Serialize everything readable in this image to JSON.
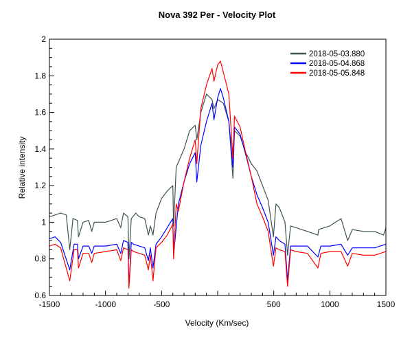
{
  "chart_data": {
    "type": "line",
    "title": "Nova 392 Per - Velocity Plot",
    "xlabel": "Velocity (Km/sec)",
    "ylabel": "Relative intensity",
    "xlim": [
      -1500,
      1500
    ],
    "ylim": [
      0.6,
      2
    ],
    "xticks": [
      -1500,
      -1000,
      -500,
      500,
      1000,
      1500
    ],
    "yticks": [
      0.6,
      0.8,
      1,
      1.2,
      1.4,
      1.6,
      1.8,
      2
    ],
    "grid": false,
    "legend_placement": "top-right",
    "series": [
      {
        "name": "2018-05-03.880",
        "color": "#3f5252",
        "points": [
          [
            -1500,
            1.03
          ],
          [
            -1450,
            1.04
          ],
          [
            -1400,
            1.05
          ],
          [
            -1350,
            1.04
          ],
          [
            -1319,
            0.85
          ],
          [
            -1290,
            1.02
          ],
          [
            -1250,
            1.01
          ],
          [
            -1241,
            0.92
          ],
          [
            -1200,
            1.0
          ],
          [
            -1150,
            1.01
          ],
          [
            -1123,
            0.95
          ],
          [
            -1100,
            1.0
          ],
          [
            -1050,
            1.0
          ],
          [
            -1000,
            1.0
          ],
          [
            -950,
            1.01
          ],
          [
            -900,
            1.02
          ],
          [
            -864,
            0.97
          ],
          [
            -840,
            1.05
          ],
          [
            -800,
            1.03
          ],
          [
            -791,
            0.8
          ],
          [
            -770,
            1.02
          ],
          [
            -730,
            1.05
          ],
          [
            -700,
            1.03
          ],
          [
            -650,
            1.02
          ],
          [
            -618,
            0.93
          ],
          [
            -600,
            0.98
          ],
          [
            -577,
            0.93
          ],
          [
            -550,
            1.05
          ],
          [
            -500,
            1.13
          ],
          [
            -450,
            1.17
          ],
          [
            -400,
            1.2
          ],
          [
            -393,
            0.98
          ],
          [
            -370,
            1.3
          ],
          [
            -300,
            1.4
          ],
          [
            -250,
            1.5
          ],
          [
            -200,
            1.53
          ],
          [
            -186,
            1.45
          ],
          [
            -150,
            1.6
          ],
          [
            -100,
            1.7
          ],
          [
            -50,
            1.67
          ],
          [
            -33,
            1.62
          ],
          [
            0,
            1.67
          ],
          [
            50,
            1.65
          ],
          [
            100,
            1.55
          ],
          [
            136,
            1.24
          ],
          [
            150,
            1.5
          ],
          [
            200,
            1.47
          ],
          [
            250,
            1.38
          ],
          [
            300,
            1.32
          ],
          [
            350,
            1.28
          ],
          [
            400,
            1.2
          ],
          [
            450,
            1.12
          ],
          [
            497,
            0.92
          ],
          [
            520,
            1.1
          ],
          [
            550,
            1.08
          ],
          [
            600,
            1.0
          ],
          [
            623,
            0.82
          ],
          [
            650,
            0.98
          ],
          [
            700,
            0.97
          ],
          [
            800,
            0.95
          ],
          [
            894,
            0.93
          ],
          [
            900,
            0.96
          ],
          [
            1000,
            0.98
          ],
          [
            1100,
            1.02
          ],
          [
            1159,
            0.9
          ],
          [
            1200,
            0.96
          ],
          [
            1300,
            0.95
          ],
          [
            1400,
            0.95
          ],
          [
            1480,
            0.93
          ],
          [
            1500,
            0.97
          ]
        ]
      },
      {
        "name": "2018-05-04.868",
        "color": "#0000ff",
        "points": [
          [
            -1500,
            0.91
          ],
          [
            -1450,
            0.92
          ],
          [
            -1400,
            0.89
          ],
          [
            -1319,
            0.74
          ],
          [
            -1280,
            0.88
          ],
          [
            -1250,
            0.88
          ],
          [
            -1241,
            0.8
          ],
          [
            -1200,
            0.87
          ],
          [
            -1150,
            0.87
          ],
          [
            -1123,
            0.83
          ],
          [
            -1100,
            0.87
          ],
          [
            -1000,
            0.87
          ],
          [
            -900,
            0.88
          ],
          [
            -864,
            0.83
          ],
          [
            -840,
            0.9
          ],
          [
            -800,
            0.89
          ],
          [
            -791,
            0.65
          ],
          [
            -770,
            0.89
          ],
          [
            -750,
            0.88
          ],
          [
            -700,
            0.87
          ],
          [
            -650,
            0.86
          ],
          [
            -618,
            0.79
          ],
          [
            -600,
            0.86
          ],
          [
            -577,
            0.75
          ],
          [
            -550,
            0.88
          ],
          [
            -500,
            0.92
          ],
          [
            -450,
            0.97
          ],
          [
            -400,
            1.02
          ],
          [
            -393,
            0.82
          ],
          [
            -350,
            1.1
          ],
          [
            -300,
            1.22
          ],
          [
            -250,
            1.32
          ],
          [
            -200,
            1.38
          ],
          [
            -186,
            1.22
          ],
          [
            -150,
            1.42
          ],
          [
            -100,
            1.55
          ],
          [
            -50,
            1.65
          ],
          [
            -33,
            1.56
          ],
          [
            0,
            1.68
          ],
          [
            25,
            1.73
          ],
          [
            50,
            1.68
          ],
          [
            100,
            1.55
          ],
          [
            136,
            1.3
          ],
          [
            150,
            1.52
          ],
          [
            200,
            1.48
          ],
          [
            250,
            1.37
          ],
          [
            300,
            1.25
          ],
          [
            350,
            1.15
          ],
          [
            400,
            1.08
          ],
          [
            450,
            1.0
          ],
          [
            497,
            0.82
          ],
          [
            520,
            0.92
          ],
          [
            550,
            0.9
          ],
          [
            600,
            0.88
          ],
          [
            623,
            0.68
          ],
          [
            650,
            0.87
          ],
          [
            700,
            0.87
          ],
          [
            800,
            0.87
          ],
          [
            894,
            0.81
          ],
          [
            920,
            0.87
          ],
          [
            1000,
            0.87
          ],
          [
            1100,
            0.88
          ],
          [
            1159,
            0.82
          ],
          [
            1200,
            0.86
          ],
          [
            1300,
            0.86
          ],
          [
            1400,
            0.86
          ],
          [
            1450,
            0.87
          ],
          [
            1500,
            0.88
          ]
        ]
      },
      {
        "name": "2018-05-05.848",
        "color": "#ff0000",
        "points": [
          [
            -1500,
            0.87
          ],
          [
            -1450,
            0.88
          ],
          [
            -1400,
            0.86
          ],
          [
            -1319,
            0.68
          ],
          [
            -1280,
            0.85
          ],
          [
            -1250,
            0.85
          ],
          [
            -1241,
            0.75
          ],
          [
            -1200,
            0.83
          ],
          [
            -1150,
            0.83
          ],
          [
            -1123,
            0.78
          ],
          [
            -1100,
            0.83
          ],
          [
            -1000,
            0.84
          ],
          [
            -900,
            0.85
          ],
          [
            -864,
            0.79
          ],
          [
            -840,
            0.86
          ],
          [
            -800,
            0.85
          ],
          [
            -791,
            0.64
          ],
          [
            -770,
            0.85
          ],
          [
            -750,
            0.84
          ],
          [
            -700,
            0.83
          ],
          [
            -650,
            0.82
          ],
          [
            -618,
            0.74
          ],
          [
            -600,
            0.82
          ],
          [
            -577,
            0.68
          ],
          [
            -550,
            0.86
          ],
          [
            -500,
            0.89
          ],
          [
            -450,
            0.93
          ],
          [
            -400,
            0.99
          ],
          [
            -393,
            0.8
          ],
          [
            -370,
            1.1
          ],
          [
            -350,
            1.06
          ],
          [
            -300,
            1.22
          ],
          [
            -250,
            1.35
          ],
          [
            -200,
            1.45
          ],
          [
            -186,
            1.32
          ],
          [
            -150,
            1.62
          ],
          [
            -100,
            1.75
          ],
          [
            -50,
            1.84
          ],
          [
            -33,
            1.77
          ],
          [
            0,
            1.86
          ],
          [
            25,
            1.88
          ],
          [
            50,
            1.82
          ],
          [
            100,
            1.7
          ],
          [
            136,
            1.35
          ],
          [
            150,
            1.58
          ],
          [
            200,
            1.52
          ],
          [
            250,
            1.38
          ],
          [
            300,
            1.25
          ],
          [
            350,
            1.1
          ],
          [
            400,
            1.03
          ],
          [
            450,
            0.95
          ],
          [
            497,
            0.76
          ],
          [
            520,
            0.86
          ],
          [
            550,
            0.85
          ],
          [
            600,
            0.84
          ],
          [
            623,
            0.65
          ],
          [
            650,
            0.85
          ],
          [
            700,
            0.84
          ],
          [
            800,
            0.83
          ],
          [
            894,
            0.75
          ],
          [
            920,
            0.83
          ],
          [
            1000,
            0.84
          ],
          [
            1100,
            0.84
          ],
          [
            1159,
            0.76
          ],
          [
            1200,
            0.83
          ],
          [
            1300,
            0.82
          ],
          [
            1400,
            0.82
          ],
          [
            1450,
            0.83
          ],
          [
            1500,
            0.84
          ]
        ]
      }
    ]
  }
}
